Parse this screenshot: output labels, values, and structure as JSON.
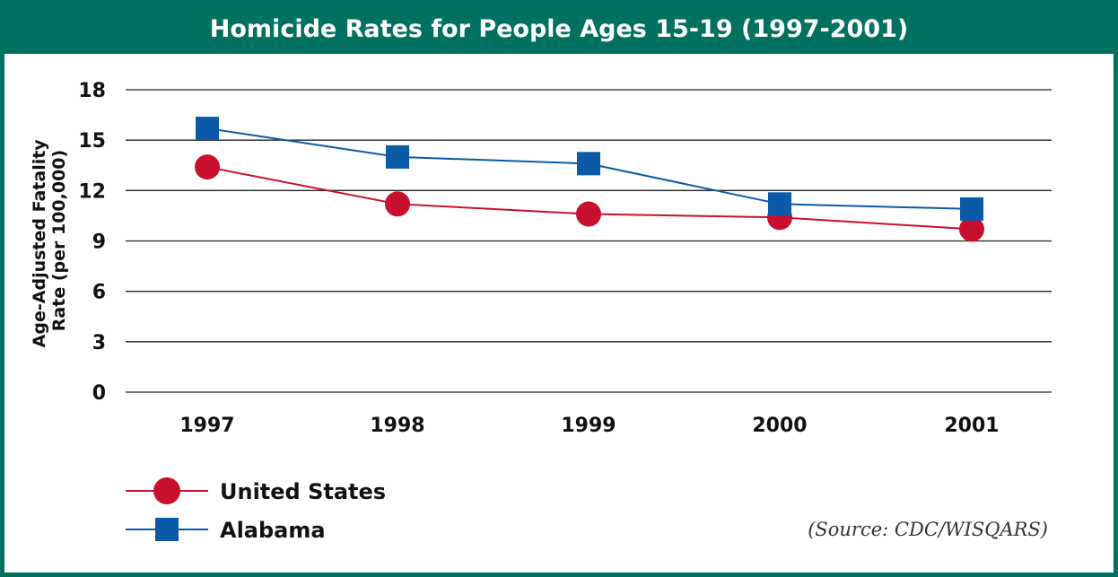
{
  "chart_data": {
    "type": "line",
    "title": "Homicide Rates for People Ages 15-19 (1997-2001)",
    "ylabel": [
      "Age-Adjusted Fatality",
      "Rate (per 100,000)"
    ],
    "categories": [
      "1997",
      "1998",
      "1999",
      "2000",
      "2001"
    ],
    "yticks": [
      "0",
      "3",
      "6",
      "9",
      "12",
      "15",
      "18"
    ],
    "ylim": [
      0,
      18
    ],
    "grid": true,
    "legend_position": "bottom-left",
    "series": [
      {
        "name": "United States",
        "values": [
          13.4,
          11.2,
          10.6,
          10.4,
          9.7
        ],
        "color": "#c8102e",
        "marker": "circle"
      },
      {
        "name": "Alabama",
        "values": [
          15.7,
          14.0,
          13.6,
          11.2,
          10.9
        ],
        "color": "#0a5aa8",
        "marker": "square"
      }
    ],
    "source": "(Source: CDC/WISQARS)"
  },
  "colors": {
    "frame": "#007060",
    "header_text": "#ffffff"
  }
}
